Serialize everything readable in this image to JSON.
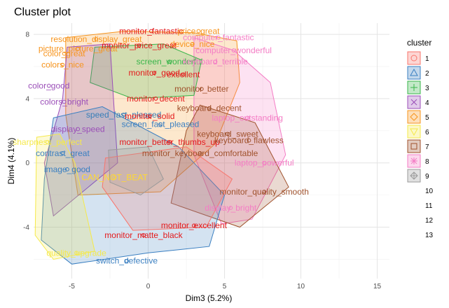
{
  "chart_data": {
    "type": "scatter",
    "title": "Cluster plot",
    "xlabel": "Dim3 (5.2%)",
    "ylabel": "Dim4 (4.1%)",
    "xlim": [
      -7.5,
      15.8
    ],
    "ylim": [
      -7.2,
      8.7
    ],
    "xticks": [
      "-5",
      "0",
      "5",
      "10",
      "15"
    ],
    "yticks": [
      "-4",
      "0",
      "4",
      "8"
    ],
    "grid": true,
    "legend": {
      "title": "cluster",
      "placement": "right",
      "entries": [
        "1",
        "2",
        "3",
        "4",
        "5",
        "6",
        "7",
        "8",
        "9",
        "10",
        "11",
        "12",
        "13"
      ]
    },
    "cluster_colors": {
      "1": "#F8766D",
      "2": "#3A7FC1",
      "3": "#39B54A",
      "4": "#9B4FB8",
      "5": "#F7941D",
      "6": "#F5E94A",
      "7": "#A0522D",
      "8": "#F47DC5",
      "9": "#9A9A9A",
      "10": "#E41A1C",
      "11": "#377EB8",
      "12": "#FFD92F",
      "13": "#A65628"
    },
    "hulls": [
      {
        "cluster": "5",
        "points": [
          [
            -5.4,
            7.8
          ],
          [
            -1.5,
            8.2
          ],
          [
            3.0,
            8.1
          ],
          [
            5.8,
            7.6
          ],
          [
            6.0,
            5.0
          ],
          [
            4.4,
            1.2
          ],
          [
            0.8,
            -1.8
          ],
          [
            -4.6,
            -2.0
          ],
          [
            -5.4,
            3.0
          ]
        ]
      },
      {
        "cluster": "8",
        "points": [
          [
            3.0,
            7.8
          ],
          [
            5.6,
            7.0
          ],
          [
            8.0,
            5.0
          ],
          [
            9.0,
            0.5
          ],
          [
            6.8,
            -3.5
          ],
          [
            4.8,
            -3.8
          ],
          [
            3.0,
            0.5
          ]
        ]
      },
      {
        "cluster": "3",
        "points": [
          [
            -3.5,
            7.2
          ],
          [
            1.0,
            7.4
          ],
          [
            3.5,
            6.4
          ],
          [
            3.0,
            4.2
          ],
          [
            -1.0,
            4.0
          ],
          [
            -3.8,
            5.0
          ]
        ]
      },
      {
        "cluster": "4",
        "points": [
          [
            -5.3,
            7.2
          ],
          [
            -2.5,
            7.4
          ],
          [
            -2.0,
            0.0
          ],
          [
            -6.2,
            -3.3
          ],
          [
            -6.8,
            0.0
          ],
          [
            -5.6,
            4.0
          ]
        ]
      },
      {
        "cluster": "7",
        "points": [
          [
            3.4,
            3.6
          ],
          [
            7.0,
            2.5
          ],
          [
            9.2,
            -1.5
          ],
          [
            6.0,
            -4.0
          ],
          [
            1.5,
            -2.5
          ],
          [
            2.5,
            2.0
          ]
        ]
      },
      {
        "cluster": "2",
        "points": [
          [
            -6.2,
            2.8
          ],
          [
            -3.0,
            3.5
          ],
          [
            2.0,
            1.0
          ],
          [
            5.0,
            -2.0
          ],
          [
            4.0,
            -5.2
          ],
          [
            0.0,
            -5.6
          ],
          [
            -5.0,
            -6.3
          ],
          [
            -7.0,
            -4.8
          ],
          [
            -6.8,
            -1.0
          ]
        ]
      },
      {
        "cluster": "6",
        "points": [
          [
            -7.3,
            1.6
          ],
          [
            -5.8,
            1.8
          ],
          [
            -4.8,
            0.0
          ],
          [
            -3.5,
            -5.5
          ],
          [
            -6.2,
            -6.0
          ],
          [
            -7.4,
            -4.5
          ]
        ]
      },
      {
        "cluster": "1",
        "points": [
          [
            -2.8,
            0.3
          ],
          [
            2.5,
            1.0
          ],
          [
            5.5,
            -1.0
          ],
          [
            3.8,
            -4.0
          ],
          [
            -1.0,
            -4.2
          ],
          [
            -3.0,
            -1.5
          ]
        ]
      },
      {
        "cluster": "9",
        "points": [
          [
            -2.6,
            0.8
          ],
          [
            0.0,
            1.0
          ],
          [
            1.0,
            -1.0
          ],
          [
            -0.5,
            -2.0
          ],
          [
            -2.5,
            -1.2
          ]
        ]
      }
    ],
    "points": [
      {
        "label": "monitor_fantastic",
        "x": 0.2,
        "y": 8.2,
        "cluster": "10"
      },
      {
        "label": "price_great",
        "x": 3.3,
        "y": 8.2,
        "cluster": "5"
      },
      {
        "label": "resolution_display_great",
        "x": -3.4,
        "y": 7.7,
        "cluster": "5"
      },
      {
        "label": "computer_fantastic",
        "x": 4.6,
        "y": 7.8,
        "cluster": "8"
      },
      {
        "label": "device_nice",
        "x": 2.9,
        "y": 7.4,
        "cluster": "5"
      },
      {
        "label": "picture_picture_great",
        "x": -4.6,
        "y": 7.1,
        "cluster": "5"
      },
      {
        "label": "monitor_price_great",
        "x": -0.6,
        "y": 7.3,
        "cluster": "10"
      },
      {
        "label": "computer_wonderful",
        "x": 5.6,
        "y": 7.0,
        "cluster": "8"
      },
      {
        "label": "color_great",
        "x": -5.5,
        "y": 6.8,
        "cluster": "5"
      },
      {
        "label": "colors_nice",
        "x": -5.6,
        "y": 6.1,
        "cluster": "5"
      },
      {
        "label": "screen_wonderful",
        "x": 1.4,
        "y": 6.3,
        "cluster": "3"
      },
      {
        "label": "keyboard_terrible",
        "x": 4.4,
        "y": 6.3,
        "cluster": "8"
      },
      {
        "label": "monitor_good",
        "x": 0.4,
        "y": 5.6,
        "cluster": "10"
      },
      {
        "label": "excellent",
        "x": 2.3,
        "y": 5.5,
        "cluster": "10"
      },
      {
        "label": "color_good",
        "x": -6.5,
        "y": 4.8,
        "cluster": "4"
      },
      {
        "label": "monitor_better",
        "x": 3.5,
        "y": 4.6,
        "cluster": "7"
      },
      {
        "label": "monitor_decent",
        "x": 0.5,
        "y": 4.0,
        "cluster": "10"
      },
      {
        "label": "colors_bright",
        "x": -5.5,
        "y": 3.8,
        "cluster": "4"
      },
      {
        "label": "keyboard_decent",
        "x": 4.0,
        "y": 3.4,
        "cluster": "7"
      },
      {
        "label": "laptop_outstanding",
        "x": 6.5,
        "y": 2.8,
        "cluster": "8"
      },
      {
        "label": "speed_fast_pleased",
        "x": -1.6,
        "y": 3.0,
        "cluster": "11"
      },
      {
        "label": "monitor_solid",
        "x": 0.1,
        "y": 2.9,
        "cluster": "10"
      },
      {
        "label": "screen_fast_pleased",
        "x": 0.8,
        "y": 2.4,
        "cluster": "2"
      },
      {
        "label": "display_speed",
        "x": -4.6,
        "y": 2.1,
        "cluster": "4"
      },
      {
        "label": "keyboard_sweet",
        "x": 5.2,
        "y": 1.8,
        "cluster": "7"
      },
      {
        "label": "monitor_better_thumbs_up",
        "x": 1.4,
        "y": 1.3,
        "cluster": "10"
      },
      {
        "label": "keyboard_flawless",
        "x": 6.6,
        "y": 1.4,
        "cluster": "7"
      },
      {
        "label": "sharpness_perfect",
        "x": -6.6,
        "y": 1.3,
        "cluster": "6"
      },
      {
        "label": "monitor_keyboard_comfortable",
        "x": 3.4,
        "y": 0.6,
        "cluster": "7"
      },
      {
        "label": "contrast_great",
        "x": -5.6,
        "y": 0.6,
        "cluster": "2"
      },
      {
        "label": "laptop_powerful",
        "x": 7.6,
        "y": 0.0,
        "cluster": "8"
      },
      {
        "label": "image_good",
        "x": -5.3,
        "y": -0.4,
        "cluster": "2"
      },
      {
        "label": "CAN_NOT_BEAT",
        "x": -2.2,
        "y": -0.9,
        "cluster": "12"
      },
      {
        "label": "monitor_quality_smooth",
        "x": 7.6,
        "y": -1.8,
        "cluster": "7"
      },
      {
        "label": "display_bright",
        "x": 5.4,
        "y": -2.8,
        "cluster": "8"
      },
      {
        "label": "monitor_excellent",
        "x": 3.0,
        "y": -3.9,
        "cluster": "10"
      },
      {
        "label": "monitor_matte_black",
        "x": -0.3,
        "y": -4.5,
        "cluster": "10"
      },
      {
        "label": "quality_upgrade",
        "x": -4.7,
        "y": -5.6,
        "cluster": "6"
      },
      {
        "label": "switch_defective",
        "x": -1.4,
        "y": -6.1,
        "cluster": "2"
      }
    ]
  }
}
